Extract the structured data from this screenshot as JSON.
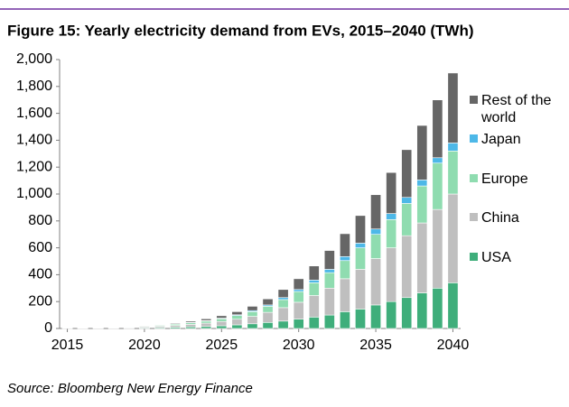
{
  "chart_data": {
    "type": "stacked-bar",
    "title": "Figure 15: Yearly electricity demand from EVs, 2015–2040 (TWh)",
    "source": "Source: Bloomberg New Energy Finance",
    "x": [
      2015,
      2016,
      2017,
      2018,
      2019,
      2020,
      2021,
      2022,
      2023,
      2024,
      2025,
      2026,
      2027,
      2028,
      2029,
      2030,
      2031,
      2032,
      2033,
      2034,
      2035,
      2036,
      2037,
      2038,
      2039,
      2040
    ],
    "xlim": [
      2014.5,
      2040.5
    ],
    "xticks": [
      2015,
      2020,
      2025,
      2030,
      2035,
      2040
    ],
    "ylim": [
      0,
      2000
    ],
    "yticks": [
      0,
      200,
      400,
      600,
      800,
      {
        "value": 1000,
        "label": "1,000"
      },
      {
        "value": 1200,
        "label": "1,200"
      },
      {
        "value": 1400,
        "label": "1,400"
      },
      {
        "value": 1600,
        "label": "1,600"
      },
      {
        "value": 1800,
        "label": "1,800"
      },
      {
        "value": 2000,
        "label": "2,000"
      }
    ],
    "grid": false,
    "series": [
      {
        "name": "USA",
        "color": "#3fae7b",
        "values": [
          1,
          1.5,
          2,
          3,
          4,
          5,
          7,
          9,
          12,
          15,
          20,
          27,
          35,
          45,
          55,
          70,
          85,
          100,
          125,
          145,
          175,
          200,
          230,
          265,
          300,
          340
        ]
      },
      {
        "name": "China",
        "color": "#bfbfbf",
        "values": [
          1.5,
          2,
          3,
          4,
          5,
          7,
          10,
          14,
          19,
          25,
          32,
          42,
          55,
          75,
          100,
          125,
          160,
          200,
          245,
          295,
          345,
          400,
          460,
          520,
          585,
          660
        ]
      },
      {
        "name": "Europe",
        "color": "#8fdcb0",
        "values": [
          1,
          1.5,
          2,
          3,
          4,
          5,
          7,
          9,
          12,
          15,
          20,
          27,
          35,
          45,
          60,
          80,
          95,
          115,
          135,
          160,
          180,
          210,
          240,
          275,
          345,
          320
        ]
      },
      {
        "name": "Japan",
        "color": "#4db8e8",
        "values": [
          0.3,
          0.5,
          1,
          1,
          1,
          2,
          2,
          2,
          3,
          4,
          5,
          6,
          8,
          10,
          15,
          15,
          20,
          25,
          30,
          35,
          40,
          45,
          45,
          45,
          40,
          60
        ]
      },
      {
        "name": "Rest of the world",
        "color": "#666666",
        "values": [
          0.2,
          0.5,
          1,
          1,
          2,
          3,
          4,
          6,
          9,
          13,
          18,
          23,
          32,
          45,
          60,
          80,
          105,
          140,
          170,
          205,
          255,
          305,
          355,
          405,
          430,
          520
        ]
      }
    ]
  }
}
